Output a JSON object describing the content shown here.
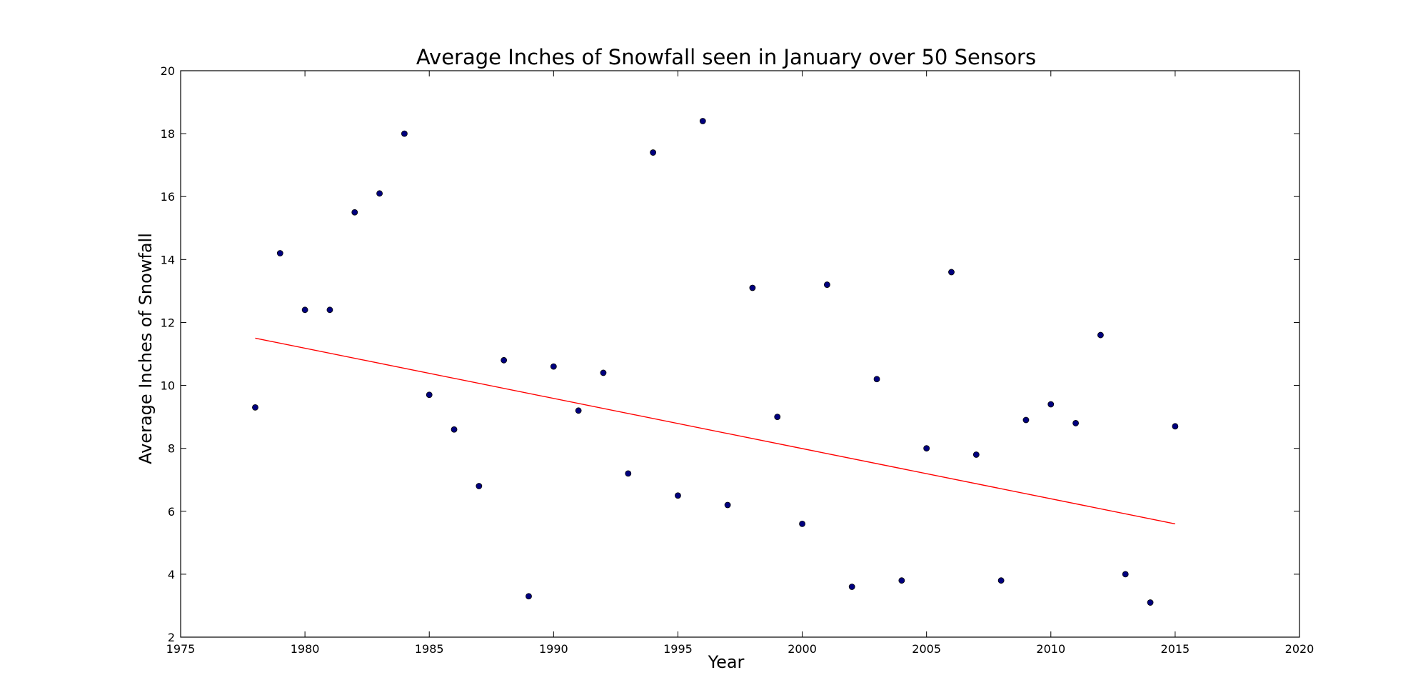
{
  "chart_data": {
    "type": "scatter",
    "title": "Average Inches of Snowfall seen in January over 50 Sensors",
    "xlabel": "Year",
    "ylabel": "Average Inches of Snowfall",
    "xlim": [
      1975,
      2020
    ],
    "ylim": [
      2,
      20
    ],
    "x_ticks": [
      1975,
      1980,
      1985,
      1990,
      1995,
      2000,
      2005,
      2010,
      2015,
      2020
    ],
    "y_ticks": [
      2,
      4,
      6,
      8,
      10,
      12,
      14,
      16,
      18,
      20
    ],
    "grid": false,
    "marker_color": "#00007f",
    "trend_color": "#ff0000",
    "points": [
      {
        "x": 1978,
        "y": 9.3
      },
      {
        "x": 1979,
        "y": 14.2
      },
      {
        "x": 1980,
        "y": 12.4
      },
      {
        "x": 1981,
        "y": 12.4
      },
      {
        "x": 1982,
        "y": 15.5
      },
      {
        "x": 1983,
        "y": 16.1
      },
      {
        "x": 1984,
        "y": 18.0
      },
      {
        "x": 1985,
        "y": 9.7
      },
      {
        "x": 1986,
        "y": 8.6
      },
      {
        "x": 1987,
        "y": 6.8
      },
      {
        "x": 1988,
        "y": 10.8
      },
      {
        "x": 1989,
        "y": 3.3
      },
      {
        "x": 1990,
        "y": 10.6
      },
      {
        "x": 1991,
        "y": 9.2
      },
      {
        "x": 1992,
        "y": 10.4
      },
      {
        "x": 1993,
        "y": 7.2
      },
      {
        "x": 1994,
        "y": 17.4
      },
      {
        "x": 1995,
        "y": 6.5
      },
      {
        "x": 1996,
        "y": 18.4
      },
      {
        "x": 1997,
        "y": 6.2
      },
      {
        "x": 1998,
        "y": 13.1
      },
      {
        "x": 1999,
        "y": 9.0
      },
      {
        "x": 2000,
        "y": 5.6
      },
      {
        "x": 2001,
        "y": 13.2
      },
      {
        "x": 2002,
        "y": 3.6
      },
      {
        "x": 2003,
        "y": 10.2
      },
      {
        "x": 2004,
        "y": 3.8
      },
      {
        "x": 2005,
        "y": 8.0
      },
      {
        "x": 2006,
        "y": 13.6
      },
      {
        "x": 2007,
        "y": 7.8
      },
      {
        "x": 2008,
        "y": 3.8
      },
      {
        "x": 2009,
        "y": 8.9
      },
      {
        "x": 2010,
        "y": 9.4
      },
      {
        "x": 2011,
        "y": 8.8
      },
      {
        "x": 2012,
        "y": 11.6
      },
      {
        "x": 2013,
        "y": 4.0
      },
      {
        "x": 2014,
        "y": 3.1
      },
      {
        "x": 2015,
        "y": 8.7
      }
    ],
    "trend_line": {
      "x": [
        1978,
        2015
      ],
      "y": [
        11.5,
        5.6
      ]
    }
  }
}
